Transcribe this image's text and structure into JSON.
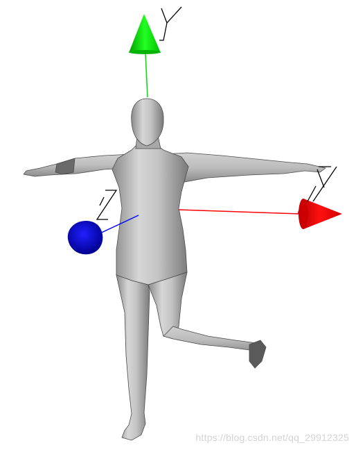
{
  "axes": {
    "x": {
      "label": "X",
      "color": "#ff0000"
    },
    "y": {
      "label": "Y",
      "color": "#00ee00"
    },
    "z": {
      "label": "Z",
      "color": "#0000cc"
    }
  },
  "model": {
    "shading": "#b8b8b8",
    "outline": "#555555"
  },
  "watermark": "https://blog.csdn.net/qq_29912325"
}
